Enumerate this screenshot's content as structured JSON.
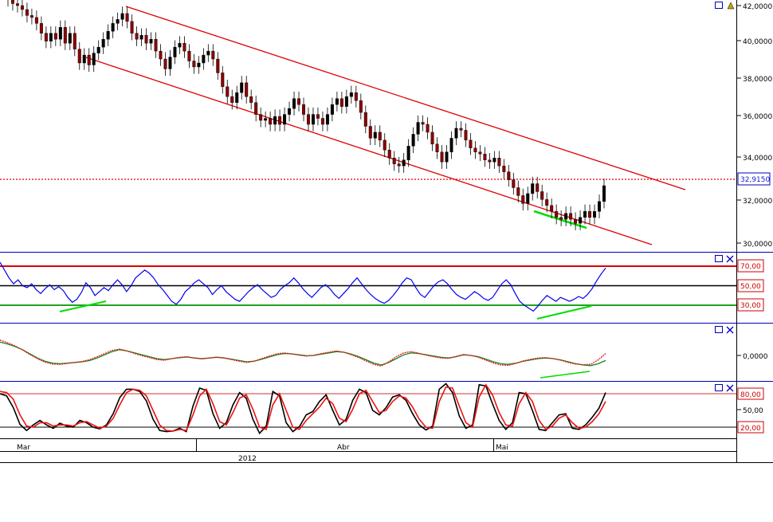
{
  "chart_data": [
    {
      "type": "candlestick",
      "panel": "price",
      "yticks": [
        "42,0000",
        "40,0000",
        "38,0000",
        "36,0000",
        "34,0000",
        "32,0000",
        "30,0000"
      ],
      "ylim": [
        29.6,
        42.3
      ],
      "last_value": 32.915,
      "last_value_label": "32,9150",
      "closes": [
        42.3,
        42.1,
        42.0,
        41.8,
        41.5,
        41.4,
        41.1,
        40.6,
        40.2,
        40.6,
        40.3,
        40.9,
        40.1,
        40.6,
        39.8,
        39.1,
        39.5,
        39.0,
        39.6,
        39.9,
        40.3,
        40.7,
        41.1,
        41.3,
        41.6,
        41.2,
        40.6,
        40.3,
        40.5,
        40.1,
        40.3,
        39.7,
        39.3,
        38.8,
        39.4,
        39.9,
        40.1,
        39.7,
        39.2,
        38.9,
        39.1,
        39.5,
        39.7,
        39.3,
        38.6,
        37.9,
        37.4,
        37.1,
        37.6,
        38.1,
        37.4,
        37.1,
        36.5,
        36.2,
        36.3,
        36.0,
        36.4,
        36.0,
        36.5,
        36.8,
        37.3,
        37.0,
        36.5,
        36.0,
        36.5,
        36.3,
        36.0,
        36.5,
        37.0,
        37.3,
        36.9,
        37.4,
        37.6,
        37.2,
        36.6,
        35.9,
        35.3,
        35.6,
        35.2,
        34.7,
        34.3,
        34.0,
        33.9,
        34.2,
        34.9,
        35.5,
        36.1,
        36.0,
        35.6,
        35.0,
        34.6,
        34.1,
        34.6,
        35.3,
        35.8,
        35.7,
        35.2,
        34.8,
        34.6,
        34.5,
        34.2,
        34.1,
        34.3,
        33.9,
        33.6,
        33.2,
        32.8,
        32.4,
        32.0,
        32.5,
        33.0,
        32.6,
        32.2,
        31.9,
        31.6,
        31.3,
        31.2,
        31.5,
        31.2,
        31.0,
        31.3,
        31.6,
        31.3,
        31.6,
        32.1,
        32.9
      ]
    },
    {
      "type": "line",
      "panel": "oscillator-1",
      "levels": [
        {
          "value": 70,
          "label": "70,00",
          "color": "#cc0000"
        },
        {
          "value": 50,
          "label": "50,00",
          "color": "#000000"
        },
        {
          "value": 30,
          "label": "30,00",
          "color": "#22a022"
        }
      ],
      "ylim": [
        14,
        84
      ],
      "series": [
        {
          "color": "#0000ee",
          "values": [
            74,
            66,
            58,
            52,
            56,
            50,
            48,
            52,
            46,
            42,
            47,
            51,
            46,
            49,
            45,
            38,
            33,
            36,
            43,
            53,
            48,
            40,
            44,
            48,
            45,
            51,
            56,
            51,
            44,
            50,
            58,
            62,
            66,
            63,
            58,
            51,
            46,
            40,
            34,
            31,
            36,
            44,
            48,
            53,
            56,
            52,
            48,
            41,
            46,
            50,
            44,
            40,
            36,
            34,
            39,
            44,
            48,
            51,
            46,
            42,
            38,
            40,
            46,
            50,
            53,
            58,
            53,
            47,
            42,
            38,
            43,
            48,
            51,
            47,
            41,
            37,
            42,
            47,
            53,
            58,
            52,
            46,
            41,
            37,
            34,
            32,
            35,
            40,
            46,
            53,
            58,
            56,
            48,
            41,
            38,
            44,
            50,
            54,
            56,
            52,
            46,
            41,
            38,
            36,
            40,
            44,
            41,
            37,
            35,
            38,
            45,
            52,
            56,
            51,
            42,
            34,
            30,
            27,
            24,
            29,
            35,
            40,
            37,
            34,
            38,
            36,
            34,
            36,
            39,
            37,
            41,
            47,
            55,
            62,
            68
          ]
        }
      ],
      "divergence_color": "#00dd00"
    },
    {
      "type": "line",
      "panel": "oscillator-2",
      "yticks": [
        "0,0000"
      ],
      "ylim": [
        -1,
        1
      ],
      "series": [
        {
          "color": "#118822",
          "values": [
            0.42,
            0.36,
            0.28,
            0.18,
            0.05,
            -0.08,
            -0.18,
            -0.24,
            -0.26,
            -0.24,
            -0.22,
            -0.2,
            -0.16,
            -0.08,
            0.02,
            0.12,
            0.18,
            0.14,
            0.08,
            0.02,
            -0.04,
            -0.1,
            -0.13,
            -0.1,
            -0.07,
            -0.05,
            -0.08,
            -0.1,
            -0.08,
            -0.06,
            -0.08,
            -0.12,
            -0.16,
            -0.2,
            -0.18,
            -0.12,
            -0.05,
            0.02,
            0.06,
            0.05,
            0.02,
            -0.01,
            0.0,
            0.04,
            0.08,
            0.12,
            0.1,
            0.04,
            -0.04,
            -0.14,
            -0.24,
            -0.3,
            -0.22,
            -0.1,
            0.02,
            0.08,
            0.06,
            0.02,
            -0.02,
            -0.06,
            -0.08,
            -0.04,
            0.02,
            0.0,
            -0.04,
            -0.12,
            -0.2,
            -0.26,
            -0.28,
            -0.24,
            -0.18,
            -0.14,
            -0.1,
            -0.08,
            -0.1,
            -0.14,
            -0.2,
            -0.26,
            -0.3,
            -0.32,
            -0.26,
            -0.16
          ]
        },
        {
          "color": "#ee1111",
          "values": [
            0.48,
            0.4,
            0.3,
            0.18,
            0.03,
            -0.1,
            -0.21,
            -0.27,
            -0.28,
            -0.25,
            -0.22,
            -0.19,
            -0.13,
            -0.04,
            0.06,
            0.16,
            0.2,
            0.14,
            0.06,
            -0.01,
            -0.07,
            -0.13,
            -0.15,
            -0.1,
            -0.06,
            -0.04,
            -0.08,
            -0.11,
            -0.08,
            -0.05,
            -0.08,
            -0.13,
            -0.18,
            -0.22,
            -0.18,
            -0.1,
            -0.02,
            0.05,
            0.08,
            0.05,
            0.01,
            -0.02,
            0.01,
            0.06,
            0.1,
            0.14,
            0.1,
            0.02,
            -0.07,
            -0.18,
            -0.28,
            -0.33,
            -0.2,
            -0.04,
            0.08,
            0.12,
            0.07,
            0.01,
            -0.04,
            -0.08,
            -0.09,
            -0.03,
            0.03,
            0.0,
            -0.06,
            -0.15,
            -0.24,
            -0.3,
            -0.31,
            -0.25,
            -0.17,
            -0.12,
            -0.08,
            -0.07,
            -0.1,
            -0.15,
            -0.22,
            -0.27,
            -0.29,
            -0.28,
            -0.14,
            0.06
          ]
        }
      ],
      "divergence_color": "#00dd00"
    },
    {
      "type": "line",
      "panel": "oscillator-3",
      "levels": [
        {
          "value": 80,
          "label": "80,00",
          "color": "#cc0000"
        },
        {
          "value": 50,
          "label": "50,00",
          "color": "#000000"
        },
        {
          "value": 20,
          "label": "20,00",
          "color": "#000000"
        }
      ],
      "ylim": [
        0,
        100
      ],
      "series": [
        {
          "color": "#000000",
          "values": [
            80,
            76,
            55,
            25,
            14,
            24,
            32,
            24,
            18,
            27,
            22,
            20,
            32,
            28,
            20,
            17,
            24,
            44,
            73,
            88,
            88,
            84,
            67,
            34,
            14,
            12,
            13,
            18,
            12,
            58,
            90,
            86,
            44,
            18,
            28,
            60,
            82,
            72,
            34,
            9,
            22,
            84,
            76,
            28,
            12,
            21,
            42,
            48,
            66,
            78,
            50,
            24,
            34,
            68,
            88,
            82,
            50,
            42,
            55,
            74,
            78,
            68,
            44,
            24,
            15,
            22,
            88,
            98,
            82,
            40,
            18,
            24,
            96,
            94,
            62,
            32,
            16,
            28,
            82,
            80,
            50,
            16,
            14,
            28,
            42,
            44,
            18,
            16,
            24,
            38,
            54,
            82
          ]
        },
        {
          "color": "#ee1111",
          "values": [
            84,
            82,
            70,
            42,
            22,
            20,
            28,
            28,
            22,
            24,
            24,
            22,
            28,
            30,
            24,
            18,
            22,
            36,
            60,
            82,
            88,
            86,
            76,
            50,
            24,
            14,
            13,
            16,
            14,
            42,
            76,
            88,
            62,
            30,
            24,
            46,
            72,
            78,
            52,
            20,
            16,
            60,
            80,
            50,
            20,
            16,
            32,
            44,
            56,
            72,
            62,
            36,
            30,
            52,
            80,
            86,
            66,
            46,
            50,
            66,
            76,
            72,
            56,
            34,
            20,
            18,
            66,
            92,
            90,
            58,
            28,
            20,
            74,
            96,
            78,
            46,
            24,
            22,
            62,
            82,
            66,
            32,
            16,
            22,
            36,
            42,
            28,
            18,
            20,
            30,
            44,
            66
          ]
        }
      ]
    }
  ],
  "x_axis": {
    "months": [
      "Mar",
      "Abr",
      "Mai"
    ],
    "year": "2012"
  },
  "colors": {
    "channel": "#dd0000",
    "panel_border": "#0000bb",
    "candle_up": "#000000",
    "candle_down": "#8b0000"
  },
  "icons": [
    "window-icon",
    "close-icon",
    "alert-icon"
  ]
}
